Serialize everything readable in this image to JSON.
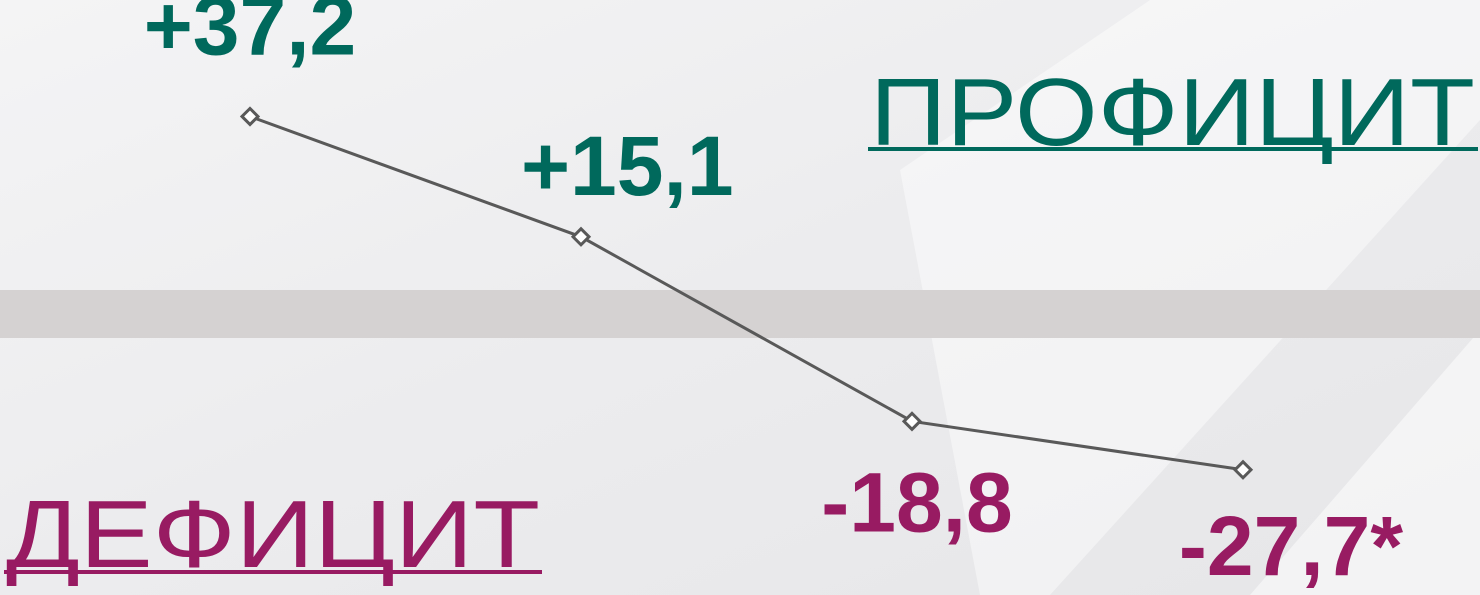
{
  "chart_data": {
    "type": "line",
    "annotations": [
      "ПРОФИЦИТ",
      "ДЕФИЦИТ"
    ],
    "values": [
      37.2,
      15.1,
      -18.8,
      -27.7
    ],
    "value_labels": [
      "+37,2",
      "+15,1",
      "-18,8",
      "-27,7*"
    ],
    "color": "#595959",
    "positive_color": "#00695c",
    "negative_color": "#981b62",
    "ylim": [
      -50.7,
      58.6
    ]
  }
}
